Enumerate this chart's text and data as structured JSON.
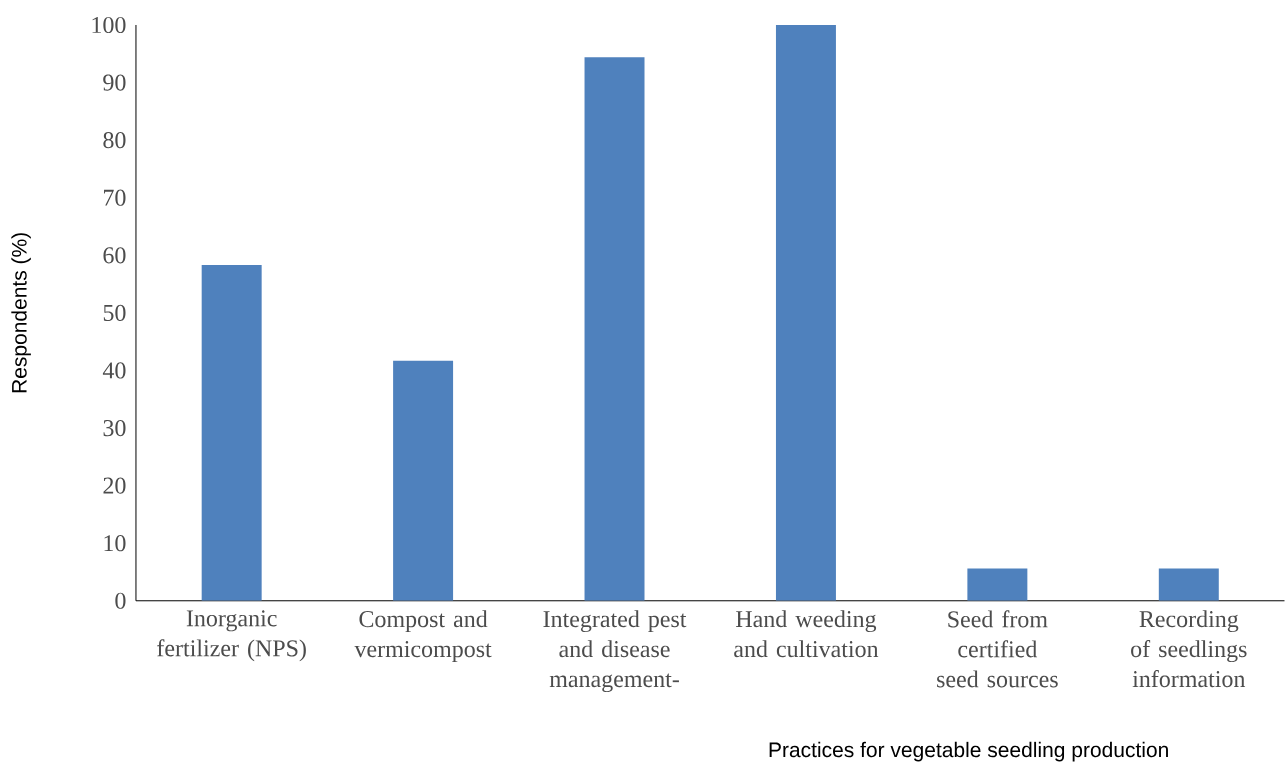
{
  "chart_data": {
    "type": "bar",
    "xlabel": "Practices for vegetable seedling production",
    "ylabel": "Respondents (%)",
    "categories": [
      "Inorganic fertilizer (NPS)",
      "Compost and vermicompost",
      "Integrated pest and disease management-",
      "Hand weeding and cultivation",
      "Seed from certified seed sources",
      "Recording of seedlings information"
    ],
    "values": [
      58.3,
      41.7,
      94.4,
      100,
      5.6,
      5.6
    ],
    "color": "#4f81bd",
    "ylim": [
      0,
      100
    ],
    "yticks": [
      0,
      10,
      20,
      30,
      40,
      50,
      60,
      70,
      80,
      90,
      100
    ],
    "grid": false,
    "legend": false
  }
}
